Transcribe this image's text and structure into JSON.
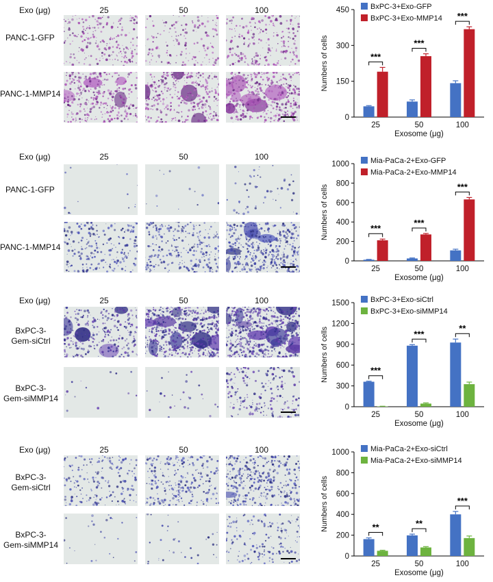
{
  "panels": [
    {
      "exo_label": "Exo (μg)",
      "doses": [
        "25",
        "50",
        "100"
      ],
      "rows": [
        {
          "label": "PANC-1-GFP",
          "images": [
            {
              "density": 0.35,
              "blob": 0.0,
              "palette": "magenta"
            },
            {
              "density": 0.25,
              "blob": 0.0,
              "palette": "magenta"
            },
            {
              "density": 0.35,
              "blob": 0.02,
              "palette": "magenta"
            }
          ]
        },
        {
          "label": "PANC-1-MMP14",
          "images": [
            {
              "density": 0.5,
              "blob": 0.25,
              "palette": "magenta"
            },
            {
              "density": 0.55,
              "blob": 0.3,
              "palette": "magenta"
            },
            {
              "density": 0.6,
              "blob": 0.5,
              "palette": "magenta"
            }
          ]
        }
      ]
    },
    {
      "exo_label": "Exo (μg)",
      "doses": [
        "25",
        "50",
        "100"
      ],
      "rows": [
        {
          "label": "PANC-1-GFP",
          "images": [
            {
              "density": 0.02,
              "blob": 0.0,
              "palette": "blue"
            },
            {
              "density": 0.02,
              "blob": 0.0,
              "palette": "blue"
            },
            {
              "density": 0.08,
              "blob": 0.0,
              "palette": "blue"
            }
          ]
        },
        {
          "label": "PANC-1-MMP14",
          "images": [
            {
              "density": 0.35,
              "blob": 0.0,
              "palette": "blue"
            },
            {
              "density": 0.4,
              "blob": 0.0,
              "palette": "blue"
            },
            {
              "density": 0.7,
              "blob": 0.35,
              "palette": "blue"
            }
          ]
        }
      ]
    },
    {
      "exo_label": "Exo (μg)",
      "doses": [
        "25",
        "50",
        "100"
      ],
      "rows": [
        {
          "label": "BxPC-3-\nGem-siCtrl",
          "images": [
            {
              "density": 0.45,
              "blob": 0.3,
              "palette": "purple"
            },
            {
              "density": 0.85,
              "blob": 0.7,
              "palette": "purple"
            },
            {
              "density": 0.9,
              "blob": 0.8,
              "palette": "purple"
            }
          ]
        },
        {
          "label": "BxPC-3-\nGem-siMMP14",
          "images": [
            {
              "density": 0.02,
              "blob": 0.0,
              "palette": "purple"
            },
            {
              "density": 0.04,
              "blob": 0.0,
              "palette": "purple"
            },
            {
              "density": 0.3,
              "blob": 0.0,
              "palette": "purple"
            }
          ]
        }
      ]
    },
    {
      "exo_label": "Exo (μg)",
      "doses": [
        "25",
        "50",
        "100"
      ],
      "rows": [
        {
          "label": "BxPC-3-\nGem-siCtrl",
          "images": [
            {
              "density": 0.3,
              "blob": 0.0,
              "palette": "blue"
            },
            {
              "density": 0.4,
              "blob": 0.0,
              "palette": "blue"
            },
            {
              "density": 0.55,
              "blob": 0.1,
              "palette": "blue"
            }
          ]
        },
        {
          "label": "BxPC-3-\nGem-siMMP14",
          "images": [
            {
              "density": 0.04,
              "blob": 0.0,
              "palette": "blue"
            },
            {
              "density": 0.05,
              "blob": 0.0,
              "palette": "blue"
            },
            {
              "density": 0.25,
              "blob": 0.0,
              "palette": "blue"
            }
          ]
        }
      ]
    }
  ],
  "chart_data": [
    {
      "type": "bar",
      "categories": [
        "25",
        "50",
        "100"
      ],
      "xlabel": "Exosome (μg)",
      "ylabel": "Numbers of cells",
      "ylim": [
        0,
        450
      ],
      "yticks": [
        0,
        150,
        300,
        450
      ],
      "legend": "top-left",
      "series": [
        {
          "name": "BxPC-3+Exo-GFP",
          "color": "#4472c4",
          "values": [
            45,
            65,
            142
          ],
          "errors": [
            3,
            7,
            10
          ]
        },
        {
          "name": "BxPC-3+Exo-MMP14",
          "color": "#c0202a",
          "values": [
            190,
            255,
            368
          ],
          "errors": [
            18,
            10,
            10
          ]
        }
      ],
      "significance": [
        "***",
        "***",
        "***"
      ]
    },
    {
      "type": "bar",
      "categories": [
        "25",
        "50",
        "100"
      ],
      "xlabel": "Exosome (μg)",
      "ylabel": "Numbers of  cells",
      "ylim": [
        0,
        1000
      ],
      "yticks": [
        0,
        200,
        400,
        600,
        800,
        1000
      ],
      "legend": "top-left",
      "series": [
        {
          "name": "Mia-PaCa-2+Exo-GFP",
          "color": "#4472c4",
          "values": [
            12,
            25,
            108
          ],
          "errors": [
            3,
            5,
            12
          ]
        },
        {
          "name": "Mia-PaCa-2+Exo-MMP14",
          "color": "#c0202a",
          "values": [
            212,
            272,
            632
          ],
          "errors": [
            12,
            10,
            20
          ]
        }
      ],
      "significance": [
        "***",
        "***",
        "***"
      ]
    },
    {
      "type": "bar",
      "categories": [
        "25",
        "50",
        "100"
      ],
      "xlabel": "Exosome (μg)",
      "ylabel": "Numbers of cells",
      "ylim": [
        0,
        1500
      ],
      "yticks": [
        0,
        300,
        600,
        900,
        1200,
        1500
      ],
      "legend": "top-left",
      "series": [
        {
          "name": "BxPC-3+Exo-siCtrl",
          "color": "#4472c4",
          "values": [
            360,
            880,
            925
          ],
          "errors": [
            8,
            15,
            50
          ]
        },
        {
          "name": "BxPC-3+Exo-siMMP14",
          "color": "#6db33f",
          "values": [
            5,
            45,
            325
          ],
          "errors": [
            2,
            10,
            30
          ]
        }
      ],
      "significance": [
        "***",
        "***",
        "**"
      ]
    },
    {
      "type": "bar",
      "categories": [
        "25",
        "50",
        "100"
      ],
      "xlabel": "Exosome (μg)",
      "ylabel": "Numbers of cells",
      "ylim": [
        0,
        1000
      ],
      "yticks": [
        0,
        200,
        400,
        600,
        800,
        1000
      ],
      "legend": "top-left",
      "series": [
        {
          "name": "Mia-PaCa-2+Exo-siCtrl",
          "color": "#4472c4",
          "values": [
            162,
            198,
            400
          ],
          "errors": [
            12,
            12,
            28
          ]
        },
        {
          "name": "Mia-PaCa-2+Exo-siMMP14",
          "color": "#6db33f",
          "values": [
            50,
            82,
            172
          ],
          "errors": [
            5,
            8,
            20
          ]
        }
      ],
      "significance": [
        "**",
        "**",
        "***"
      ]
    }
  ]
}
